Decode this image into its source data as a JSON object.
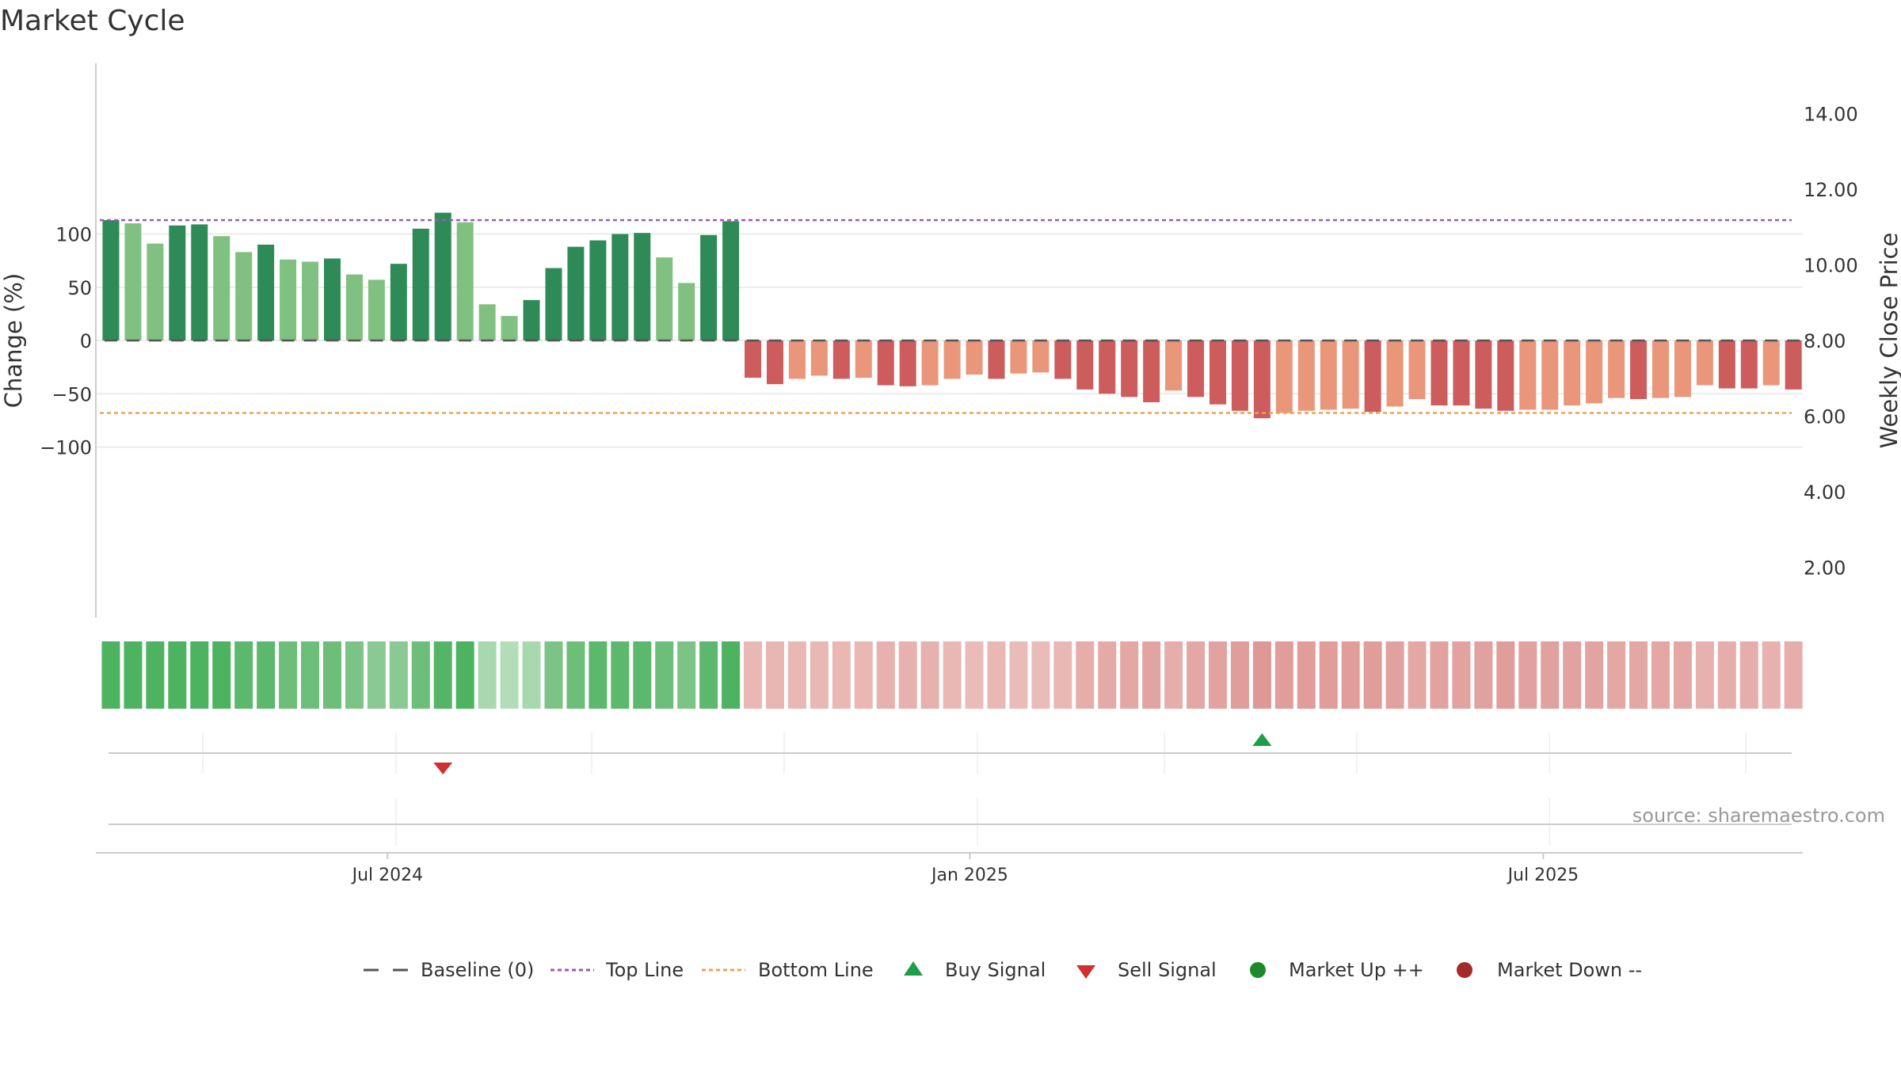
{
  "chart_data": {
    "type": "bar",
    "title": "Market Cycle",
    "ylabel": "Change (%)",
    "y2label": "Weekly Close Price",
    "ylim": [
      -130,
      130
    ],
    "y2lim": [
      1,
      15.5
    ],
    "yticks": [
      {
        "value": 100,
        "label": "100"
      },
      {
        "value": 50,
        "label": "50"
      },
      {
        "value": 0,
        "label": "0"
      },
      {
        "value": -50,
        "label": "−50"
      },
      {
        "value": -100,
        "label": "−100"
      }
    ],
    "y2ticks": [
      {
        "value": 14,
        "label": "14.00"
      },
      {
        "value": 12,
        "label": "12.00"
      },
      {
        "value": 10,
        "label": "10.00"
      },
      {
        "value": 8,
        "label": "8.00"
      },
      {
        "value": 6,
        "label": "6.00"
      },
      {
        "value": 4,
        "label": "4.00"
      },
      {
        "value": 2,
        "label": "2.00"
      }
    ],
    "xticks": [
      {
        "index": 13,
        "label": "Jul 2024"
      },
      {
        "index": 39.3,
        "label": "Jan 2025"
      },
      {
        "index": 65.2,
        "label": "Jul 2025"
      }
    ],
    "top_line": 113,
    "bottom_line": -68,
    "values": [
      113,
      110,
      91,
      108,
      109,
      98,
      83,
      90,
      76,
      74,
      77,
      62,
      57,
      72,
      105,
      120,
      111,
      34,
      23,
      38,
      68,
      88,
      94,
      100,
      101,
      78,
      54,
      99,
      112,
      -35,
      -41,
      -36,
      -33,
      -36,
      -35,
      -42,
      -43,
      -42,
      -36,
      -32,
      -36,
      -31,
      -30,
      -36,
      -46,
      -50,
      -53,
      -58,
      -47,
      -53,
      -60,
      -66,
      -73,
      -68,
      -66,
      -65,
      -64,
      -67,
      -62,
      -55,
      -61,
      -61,
      -64,
      -66,
      -65,
      -65,
      -61,
      -59,
      -54,
      -55,
      -54,
      -53,
      -42,
      -45,
      -45,
      -42,
      -46
    ],
    "intensity": [
      2,
      1,
      1,
      2,
      2,
      1,
      1,
      2,
      1,
      1,
      2,
      1,
      1,
      2,
      2,
      2,
      1,
      1,
      1,
      2,
      2,
      2,
      2,
      2,
      2,
      1,
      1,
      2,
      2,
      2,
      2,
      1,
      1,
      2,
      1,
      2,
      2,
      1,
      1,
      1,
      2,
      1,
      1,
      2,
      2,
      2,
      2,
      2,
      1,
      2,
      2,
      2,
      2,
      1,
      1,
      1,
      1,
      2,
      1,
      1,
      2,
      2,
      2,
      2,
      1,
      1,
      1,
      1,
      1,
      2,
      1,
      1,
      1,
      2,
      2,
      1,
      2
    ],
    "strip_colors": [
      "#4db360",
      "#4db360",
      "#4db360",
      "#4db360",
      "#4db360",
      "#4db360",
      "#5cb86c",
      "#5cb86c",
      "#6cbe79",
      "#6cbe79",
      "#6cbe79",
      "#7bc486",
      "#8ac993",
      "#8ac993",
      "#6cbe79",
      "#55b566",
      "#4db360",
      "#a8d9ae",
      "#b3ddb8",
      "#a8d9ae",
      "#7bc486",
      "#6cbe79",
      "#5cb86c",
      "#5cb86c",
      "#5cb86c",
      "#6cbe79",
      "#7bc486",
      "#5cb86c",
      "#4db360",
      "#e9b8b5",
      "#e8b6b3",
      "#e9b8b5",
      "#e9b8b5",
      "#e9b8b5",
      "#e9b8b5",
      "#e6b1ae",
      "#e6b1ae",
      "#e6b1ae",
      "#e9b8b5",
      "#eabcb9",
      "#e9b8b5",
      "#eabcb9",
      "#eabcb9",
      "#e9b8b5",
      "#e5aeab",
      "#e4aaa7",
      "#e3a7a4",
      "#e2a4a1",
      "#e5aeab",
      "#e3a7a4",
      "#e2a3a0",
      "#e09d9a",
      "#de9896",
      "#e09d9a",
      "#e09d9a",
      "#e09d9a",
      "#e09d9a",
      "#e09d9a",
      "#e1a19e",
      "#e3a7a4",
      "#e2a3a0",
      "#e2a3a0",
      "#e1a19e",
      "#e09d9a",
      "#e1a19e",
      "#e1a19e",
      "#e2a3a0",
      "#e2a4a1",
      "#e3a7a4",
      "#e3a7a4",
      "#e3a7a4",
      "#e3a7a4",
      "#e6b1ae",
      "#e5aeab",
      "#e5aeab",
      "#e6b1ae",
      "#e5aeab"
    ],
    "buy_signals": [
      52
    ],
    "sell_signals": [
      15
    ],
    "legend": [
      "Baseline (0)",
      "Top Line",
      "Bottom Line",
      "Buy Signal",
      "Sell Signal",
      "Market Up ++",
      "Market Down --"
    ],
    "grid": true
  },
  "colors": {
    "up_strong": "#2e8b57",
    "up_light": "#80c080",
    "down_strong": "#cd5c5c",
    "down_light": "#e9967a",
    "top_line": "#9b59b6",
    "bottom_line": "#f0a050",
    "buy": "#1e9e48",
    "sell": "#d03030",
    "market_up": "#1a8a2a",
    "market_down": "#a52a2a",
    "baseline": "#555555"
  },
  "source": "source: sharemaestro.com"
}
